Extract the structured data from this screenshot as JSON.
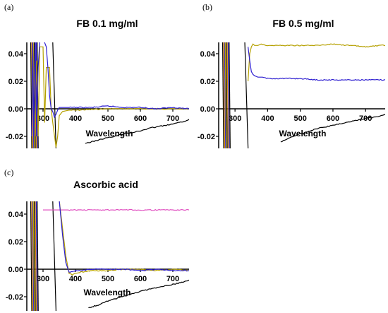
{
  "chart_data": [
    {
      "type": "line",
      "panel_label": "(a)",
      "title": "FB 0.1 mg/ml",
      "xlabel": "Wavelength",
      "ylabel": "",
      "xlim": [
        250,
        750
      ],
      "ylim": [
        -0.028,
        0.05
      ],
      "x_ticks": [
        "300",
        "400",
        "500",
        "600",
        "700"
      ],
      "y_ticks": [
        "0.04",
        "0.02",
        "0.00",
        "-0.02"
      ],
      "colors": {
        "yellow": "#b5a000",
        "blue": "#2e1fd0",
        "black": "#000000",
        "orange": "#e08a00"
      },
      "series": [
        {
          "color": "yellow",
          "x": [
            265,
            270,
            275,
            280,
            285,
            290,
            300,
            305,
            310,
            320,
            325,
            330,
            340,
            345,
            350,
            360,
            380,
            400,
            450,
            500,
            550,
            600,
            650,
            700,
            750
          ],
          "y": [
            -0.02,
            0.04,
            -0.02,
            0.035,
            -0.02,
            0.045,
            0.045,
            -0.01,
            0.03,
            0.03,
            0.0,
            -0.01,
            -0.028,
            -0.02,
            -0.005,
            -0.002,
            -0.001,
            -0.001,
            -0.0005,
            0.0,
            0.0,
            0.0,
            0.0,
            0.0,
            0.0
          ]
        },
        {
          "color": "blue",
          "x": [
            265,
            268,
            272,
            276,
            280,
            285,
            290,
            295,
            300,
            305,
            310,
            315,
            320,
            325,
            330,
            335,
            340,
            345,
            350,
            360,
            380,
            400,
            450,
            500,
            550,
            600,
            650,
            700,
            750
          ],
          "y": [
            -0.02,
            0.05,
            -0.02,
            0.05,
            -0.02,
            0.03,
            0.05,
            0.05,
            0.05,
            0.048,
            0.045,
            0.03,
            0.01,
            0.0,
            -0.002,
            -0.006,
            -0.004,
            -0.001,
            0.001,
            0.001,
            0.001,
            0.001,
            0.001,
            0.002,
            0.001,
            0.001,
            0.0,
            0.001,
            0.0
          ]
        },
        {
          "color": "black",
          "x": [
            430,
            450,
            480,
            500,
            520,
            550,
            580,
            600,
            630,
            650,
            680,
            700,
            720,
            750
          ],
          "y": [
            -0.025,
            -0.024,
            -0.022,
            -0.021,
            -0.02,
            -0.018,
            -0.017,
            -0.016,
            -0.014,
            -0.013,
            -0.012,
            -0.011,
            -0.01,
            -0.008
          ]
        }
      ]
    },
    {
      "type": "line",
      "panel_label": "(b)",
      "title": "FB 0.5 mg/ml",
      "xlabel": "Wavelength",
      "ylabel": "",
      "xlim": [
        250,
        760
      ],
      "ylim": [
        -0.028,
        0.05
      ],
      "x_ticks": [
        "300",
        "400",
        "500",
        "600",
        "700"
      ],
      "y_ticks": [
        "0.04",
        "0.02",
        "0.00",
        "-0.02"
      ],
      "colors": {
        "yellow": "#b5a000",
        "blue": "#2e1fd0",
        "black": "#000000",
        "orange": "#e08a00"
      },
      "series": [
        {
          "color": "yellow",
          "x": [
            340,
            345,
            350,
            355,
            360,
            370,
            380,
            400,
            450,
            500,
            550,
            600,
            650,
            700,
            750,
            760
          ],
          "y": [
            0.02,
            0.04,
            0.045,
            0.047,
            0.046,
            0.046,
            0.047,
            0.046,
            0.046,
            0.046,
            0.046,
            0.047,
            0.046,
            0.045,
            0.046,
            0.046
          ]
        },
        {
          "color": "blue",
          "x": [
            340,
            345,
            350,
            355,
            360,
            370,
            380,
            400,
            450,
            500,
            550,
            600,
            650,
            700,
            750,
            760
          ],
          "y": [
            0.045,
            0.035,
            0.027,
            0.025,
            0.024,
            0.023,
            0.023,
            0.022,
            0.022,
            0.022,
            0.021,
            0.021,
            0.021,
            0.021,
            0.021,
            0.021
          ]
        },
        {
          "color": "black",
          "x": [
            440,
            460,
            480,
            500,
            530,
            560,
            600,
            640,
            680,
            700,
            730,
            760
          ],
          "y": [
            -0.024,
            -0.022,
            -0.02,
            -0.018,
            -0.016,
            -0.014,
            -0.012,
            -0.01,
            -0.008,
            -0.007,
            -0.006,
            -0.004
          ]
        }
      ]
    },
    {
      "type": "line",
      "panel_label": "(c)",
      "title": "Ascorbic acid",
      "xlabel": "Wavelength",
      "ylabel": "",
      "xlim": [
        250,
        750
      ],
      "ylim": [
        -0.028,
        0.05
      ],
      "x_ticks": [
        "300",
        "400",
        "500",
        "600",
        "700"
      ],
      "y_ticks": [
        "0.04",
        "0.02",
        "0.00",
        "-0.02"
      ],
      "colors": {
        "yellow": "#b5a000",
        "blue": "#2e1fd0",
        "black": "#000000",
        "orange": "#e08a00",
        "pink": "#e050c0"
      },
      "series": [
        {
          "color": "pink",
          "x": [
            300,
            330,
            350,
            370,
            400,
            450,
            500,
            550,
            600,
            650,
            700,
            750
          ],
          "y": [
            0.043,
            0.043,
            0.043,
            0.043,
            0.043,
            0.043,
            0.043,
            0.043,
            0.043,
            0.043,
            0.043,
            0.043
          ]
        },
        {
          "color": "yellow",
          "x": [
            350,
            360,
            370,
            380,
            390,
            400,
            420,
            450,
            500,
            550,
            600,
            650,
            700,
            750
          ],
          "y": [
            0.05,
            0.03,
            0.01,
            -0.003,
            -0.004,
            -0.003,
            -0.002,
            -0.001,
            -0.001,
            0.0,
            0.0,
            -0.001,
            0.0,
            -0.001
          ]
        },
        {
          "color": "blue",
          "x": [
            350,
            360,
            370,
            380,
            390,
            400,
            420,
            450,
            500,
            550,
            600,
            650,
            700,
            750
          ],
          "y": [
            0.05,
            0.025,
            0.005,
            -0.002,
            -0.002,
            -0.001,
            -0.001,
            0.0,
            0.0,
            0.0,
            -0.001,
            0.0,
            -0.001,
            -0.001
          ]
        },
        {
          "color": "black",
          "x": [
            440,
            470,
            500,
            530,
            560,
            600,
            640,
            680,
            720,
            750
          ],
          "y": [
            -0.028,
            -0.026,
            -0.023,
            -0.021,
            -0.019,
            -0.016,
            -0.014,
            -0.012,
            -0.01,
            -0.008
          ]
        }
      ]
    }
  ]
}
